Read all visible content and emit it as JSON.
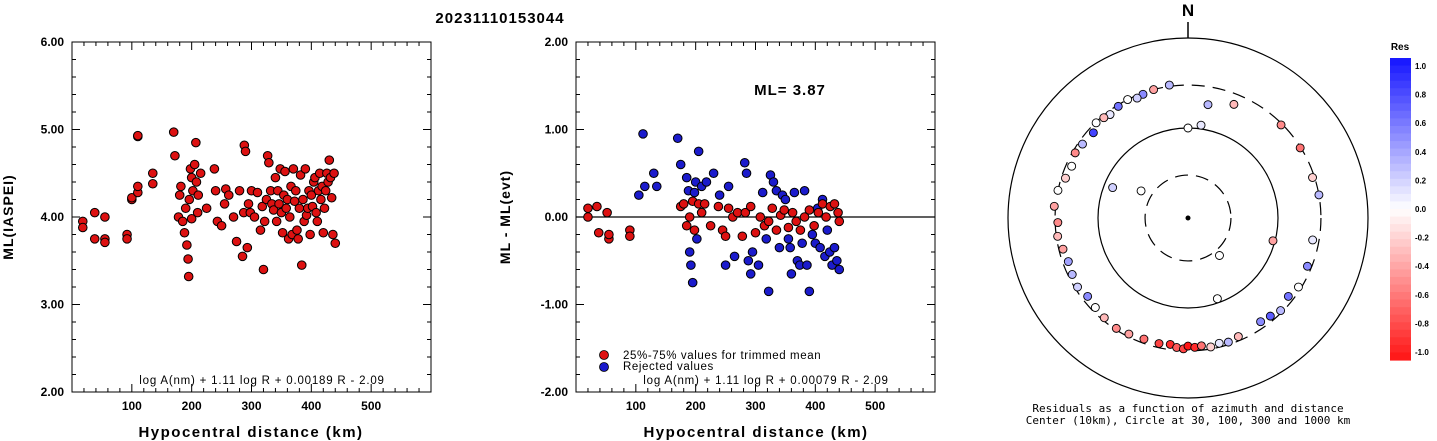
{
  "title": "20231110153044",
  "colors": {
    "trimmed": "#dd1111",
    "rejected": "#1b1bcc",
    "outline": "#000000"
  },
  "chart_data": [
    {
      "type": "scatter",
      "id": "ml_vs_distance",
      "xlabel": "Hypocentral distance (km)",
      "ylabel": "ML(IASPEI)",
      "xlim": [
        0,
        600
      ],
      "ylim": [
        2,
        6
      ],
      "xticks": [
        100,
        200,
        300,
        400,
        500
      ],
      "yticks": [
        "2.00",
        "3.00",
        "4.00",
        "5.00",
        "6.00"
      ],
      "formula": "log A(nm) + 1.11 log R + 0.00189 R - 2.09",
      "points": [
        [
          18,
          3.95
        ],
        [
          18,
          3.88
        ],
        [
          38,
          4.05
        ],
        [
          38,
          3.75
        ],
        [
          55,
          4.0
        ],
        [
          55,
          3.75
        ],
        [
          55,
          3.71
        ],
        [
          92,
          3.8
        ],
        [
          92,
          3.75
        ],
        [
          100,
          4.2
        ],
        [
          100,
          4.22
        ],
        [
          110,
          4.92
        ],
        [
          110,
          4.93
        ],
        [
          110,
          4.28
        ],
        [
          110,
          4.35
        ],
        [
          135,
          4.5
        ],
        [
          135,
          4.38
        ],
        [
          170,
          4.97
        ],
        [
          172,
          4.7
        ],
        [
          178,
          4.0
        ],
        [
          180,
          4.25
        ],
        [
          182,
          4.35
        ],
        [
          185,
          3.95
        ],
        [
          188,
          3.82
        ],
        [
          190,
          4.1
        ],
        [
          192,
          3.68
        ],
        [
          194,
          3.52
        ],
        [
          195,
          3.32
        ],
        [
          196,
          4.2
        ],
        [
          198,
          4.55
        ],
        [
          200,
          4.45
        ],
        [
          200,
          3.98
        ],
        [
          202,
          4.3
        ],
        [
          205,
          4.6
        ],
        [
          207,
          4.85
        ],
        [
          208,
          4.4
        ],
        [
          210,
          4.05
        ],
        [
          211,
          4.25
        ],
        [
          215,
          4.5
        ],
        [
          225,
          4.1
        ],
        [
          238,
          4.55
        ],
        [
          240,
          4.3
        ],
        [
          243,
          3.95
        ],
        [
          250,
          3.9
        ],
        [
          255,
          4.15
        ],
        [
          257,
          4.32
        ],
        [
          262,
          4.25
        ],
        [
          270,
          4.0
        ],
        [
          275,
          3.72
        ],
        [
          280,
          4.3
        ],
        [
          285,
          3.55
        ],
        [
          287,
          4.05
        ],
        [
          288,
          4.82
        ],
        [
          290,
          4.75
        ],
        [
          293,
          3.65
        ],
        [
          295,
          4.15
        ],
        [
          298,
          4.05
        ],
        [
          300,
          4.3
        ],
        [
          305,
          4.0
        ],
        [
          310,
          4.28
        ],
        [
          315,
          3.85
        ],
        [
          318,
          4.12
        ],
        [
          320,
          3.4
        ],
        [
          322,
          3.95
        ],
        [
          325,
          4.2
        ],
        [
          327,
          4.7
        ],
        [
          329,
          4.62
        ],
        [
          332,
          4.3
        ],
        [
          334,
          4.15
        ],
        [
          337,
          4.08
        ],
        [
          340,
          4.45
        ],
        [
          342,
          3.95
        ],
        [
          344,
          4.3
        ],
        [
          346,
          4.15
        ],
        [
          348,
          4.55
        ],
        [
          350,
          4.05
        ],
        [
          352,
          3.82
        ],
        [
          354,
          4.25
        ],
        [
          356,
          4.52
        ],
        [
          358,
          4.1
        ],
        [
          360,
          4.2
        ],
        [
          362,
          3.75
        ],
        [
          364,
          4.0
        ],
        [
          366,
          4.35
        ],
        [
          368,
          3.8
        ],
        [
          370,
          4.55
        ],
        [
          372,
          4.18
        ],
        [
          374,
          4.3
        ],
        [
          376,
          3.85
        ],
        [
          378,
          3.75
        ],
        [
          380,
          4.1
        ],
        [
          382,
          4.48
        ],
        [
          384,
          3.45
        ],
        [
          386,
          4.2
        ],
        [
          388,
          3.95
        ],
        [
          390,
          4.55
        ],
        [
          392,
          4.02
        ],
        [
          394,
          4.1
        ],
        [
          396,
          4.3
        ],
        [
          398,
          3.8
        ],
        [
          400,
          4.25
        ],
        [
          402,
          4.12
        ],
        [
          404,
          4.4
        ],
        [
          406,
          4.45
        ],
        [
          408,
          4.05
        ],
        [
          410,
          3.95
        ],
        [
          412,
          4.3
        ],
        [
          414,
          4.5
        ],
        [
          416,
          4.2
        ],
        [
          418,
          4.35
        ],
        [
          420,
          3.82
        ],
        [
          422,
          4.1
        ],
        [
          424,
          4.3
        ],
        [
          426,
          4.5
        ],
        [
          428,
          4.4
        ],
        [
          430,
          4.65
        ],
        [
          432,
          4.45
        ],
        [
          434,
          4.22
        ],
        [
          436,
          3.8
        ],
        [
          438,
          4.5
        ],
        [
          440,
          3.7
        ]
      ]
    },
    {
      "type": "scatter",
      "id": "residual_vs_distance",
      "xlabel": "Hypocentral distance (km)",
      "ylabel": "ML - ML(evt)",
      "xlim": [
        0,
        600
      ],
      "ylim": [
        -2,
        2
      ],
      "xticks": [
        100,
        200,
        300,
        400,
        500
      ],
      "yticks": [
        "-2.00",
        "-1.00",
        "0.00",
        "1.00",
        "2.00"
      ],
      "annotation": "ML= 3.87",
      "legend": [
        "25%-75% values for trimmed mean",
        "Rejected values"
      ],
      "formula": "log A(nm) + 1.11 log R + 0.00079 R - 2.09",
      "trimmed": [
        [
          20,
          0.1
        ],
        [
          20,
          0.0
        ],
        [
          35,
          0.12
        ],
        [
          38,
          -0.18
        ],
        [
          52,
          0.05
        ],
        [
          55,
          -0.25
        ],
        [
          55,
          -0.2
        ],
        [
          90,
          -0.15
        ],
        [
          90,
          -0.22
        ],
        [
          175,
          0.12
        ],
        [
          180,
          0.15
        ],
        [
          185,
          -0.1
        ],
        [
          190,
          0.0
        ],
        [
          195,
          0.18
        ],
        [
          198,
          -0.15
        ],
        [
          205,
          0.15
        ],
        [
          210,
          0.05
        ],
        [
          215,
          0.15
        ],
        [
          225,
          -0.1
        ],
        [
          238,
          0.12
        ],
        [
          245,
          -0.15
        ],
        [
          250,
          -0.22
        ],
        [
          255,
          0.1
        ],
        [
          262,
          0.0
        ],
        [
          270,
          0.05
        ],
        [
          278,
          -0.22
        ],
        [
          283,
          0.05
        ],
        [
          292,
          0.12
        ],
        [
          300,
          -0.18
        ],
        [
          308,
          0.0
        ],
        [
          315,
          -0.1
        ],
        [
          322,
          -0.05
        ],
        [
          328,
          0.1
        ],
        [
          335,
          -0.15
        ],
        [
          342,
          0.02
        ],
        [
          348,
          0.08
        ],
        [
          355,
          -0.12
        ],
        [
          362,
          0.05
        ],
        [
          368,
          -0.05
        ],
        [
          375,
          -0.15
        ],
        [
          382,
          0.0
        ],
        [
          390,
          0.08
        ],
        [
          398,
          -0.1
        ],
        [
          405,
          0.05
        ],
        [
          412,
          0.15
        ],
        [
          418,
          0.0
        ],
        [
          425,
          0.12
        ],
        [
          432,
          0.15
        ],
        [
          438,
          0.05
        ],
        [
          440,
          -0.05
        ]
      ],
      "rejected": [
        [
          105,
          0.25
        ],
        [
          112,
          0.95
        ],
        [
          115,
          0.35
        ],
        [
          130,
          0.5
        ],
        [
          135,
          0.35
        ],
        [
          170,
          0.9
        ],
        [
          175,
          0.6
        ],
        [
          185,
          0.45
        ],
        [
          188,
          0.3
        ],
        [
          190,
          -0.4
        ],
        [
          192,
          -0.55
        ],
        [
          195,
          -0.75
        ],
        [
          198,
          0.28
        ],
        [
          200,
          0.4
        ],
        [
          202,
          -0.25
        ],
        [
          205,
          0.75
        ],
        [
          210,
          0.35
        ],
        [
          218,
          0.4
        ],
        [
          230,
          0.5
        ],
        [
          240,
          0.25
        ],
        [
          250,
          -0.55
        ],
        [
          255,
          0.35
        ],
        [
          265,
          -0.45
        ],
        [
          282,
          0.62
        ],
        [
          285,
          0.5
        ],
        [
          288,
          -0.5
        ],
        [
          292,
          -0.65
        ],
        [
          295,
          -0.4
        ],
        [
          305,
          -0.55
        ],
        [
          312,
          0.28
        ],
        [
          318,
          -0.25
        ],
        [
          322,
          -0.85
        ],
        [
          325,
          0.48
        ],
        [
          330,
          0.4
        ],
        [
          335,
          0.3
        ],
        [
          340,
          -0.35
        ],
        [
          345,
          0.25
        ],
        [
          350,
          0.2
        ],
        [
          355,
          -0.25
        ],
        [
          358,
          -0.35
        ],
        [
          360,
          -0.65
        ],
        [
          365,
          0.28
        ],
        [
          370,
          -0.5
        ],
        [
          374,
          -0.55
        ],
        [
          378,
          -0.3
        ],
        [
          382,
          0.3
        ],
        [
          386,
          -0.55
        ],
        [
          390,
          -0.85
        ],
        [
          395,
          -0.2
        ],
        [
          400,
          -0.3
        ],
        [
          404,
          0.1
        ],
        [
          408,
          -0.35
        ],
        [
          412,
          0.2
        ],
        [
          416,
          -0.45
        ],
        [
          420,
          -0.15
        ],
        [
          424,
          -0.4
        ],
        [
          428,
          -0.55
        ],
        [
          432,
          -0.35
        ],
        [
          436,
          -0.5
        ],
        [
          440,
          -0.6
        ]
      ]
    },
    {
      "type": "polar-scatter",
      "id": "azimuth_residuals",
      "north_label": "N",
      "caption_line1": "Residuals as a function of azimuth and distance",
      "caption_line2": "Center (10km), Circle at 30, 100, 300 and 1000 km",
      "colorbar_title": "Res",
      "colorbar_ticks": [
        "1.0",
        "0.8",
        "0.6",
        "0.4",
        "0.2",
        "0.0",
        "-0.2",
        "-0.4",
        "-0.6",
        "-0.8",
        "-1.0"
      ],
      "stations": [
        [
          352,
          310,
          0.3
        ],
        [
          345,
          300,
          -0.4
        ],
        [
          340,
          290,
          0.5
        ],
        [
          337,
          280,
          0.2
        ],
        [
          333,
          300,
          0.0
        ],
        [
          328,
          290,
          0.6
        ],
        [
          323,
          275,
          0.1
        ],
        [
          320,
          285,
          -0.3
        ],
        [
          316,
          295,
          0.0
        ],
        [
          312,
          260,
          0.8
        ],
        [
          305,
          270,
          0.3
        ],
        [
          300,
          280,
          -0.5
        ],
        [
          294,
          260,
          0.0
        ],
        [
          288,
          270,
          -0.2
        ],
        [
          282,
          300,
          0.0
        ],
        [
          275,
          310,
          -0.4
        ],
        [
          268,
          280,
          -0.5
        ],
        [
          262,
          290,
          -0.3
        ],
        [
          256,
          270,
          -0.4
        ],
        [
          250,
          260,
          0.4
        ],
        [
          244,
          270,
          0.3
        ],
        [
          238,
          280,
          0.2
        ],
        [
          232,
          260,
          0.5
        ],
        [
          226,
          270,
          0.0
        ],
        [
          220,
          280,
          -0.3
        ],
        [
          213,
          290,
          -0.5
        ],
        [
          207,
          280,
          -0.4
        ],
        [
          200,
          270,
          -0.6
        ],
        [
          193,
          270,
          -0.8
        ],
        [
          188,
          262,
          -0.9
        ],
        [
          185,
          278,
          -0.7
        ],
        [
          182,
          285,
          -0.8
        ],
        [
          180,
          265,
          -1.0
        ],
        [
          177,
          275,
          -0.9
        ],
        [
          174,
          268,
          -0.6
        ],
        [
          170,
          285,
          -0.2
        ],
        [
          166,
          272,
          0.1
        ],
        [
          162,
          282,
          0.3
        ],
        [
          157,
          270,
          -0.3
        ],
        [
          145,
          255,
          0.5
        ],
        [
          140,
          265,
          0.7
        ],
        [
          135,
          285,
          0.3
        ],
        [
          128,
          260,
          0.6
        ],
        [
          122,
          280,
          0.0
        ],
        [
          112,
          270,
          0.5
        ],
        [
          100,
          255,
          0.1
        ],
        [
          80,
          300,
          0.3
        ],
        [
          72,
          285,
          -0.2
        ],
        [
          58,
          295,
          -0.6
        ],
        [
          45,
          290,
          -0.5
        ],
        [
          22,
          230,
          -0.3
        ],
        [
          8,
          110,
          0.1
        ],
        [
          0,
          100,
          0.0
        ],
        [
          10,
          190,
          0.3
        ],
        [
          160,
          90,
          0.0
        ],
        [
          300,
          40,
          0.0
        ],
        [
          292,
          80,
          0.2
        ],
        [
          105,
          95,
          -0.4
        ],
        [
          140,
          35,
          0.0
        ]
      ]
    }
  ]
}
